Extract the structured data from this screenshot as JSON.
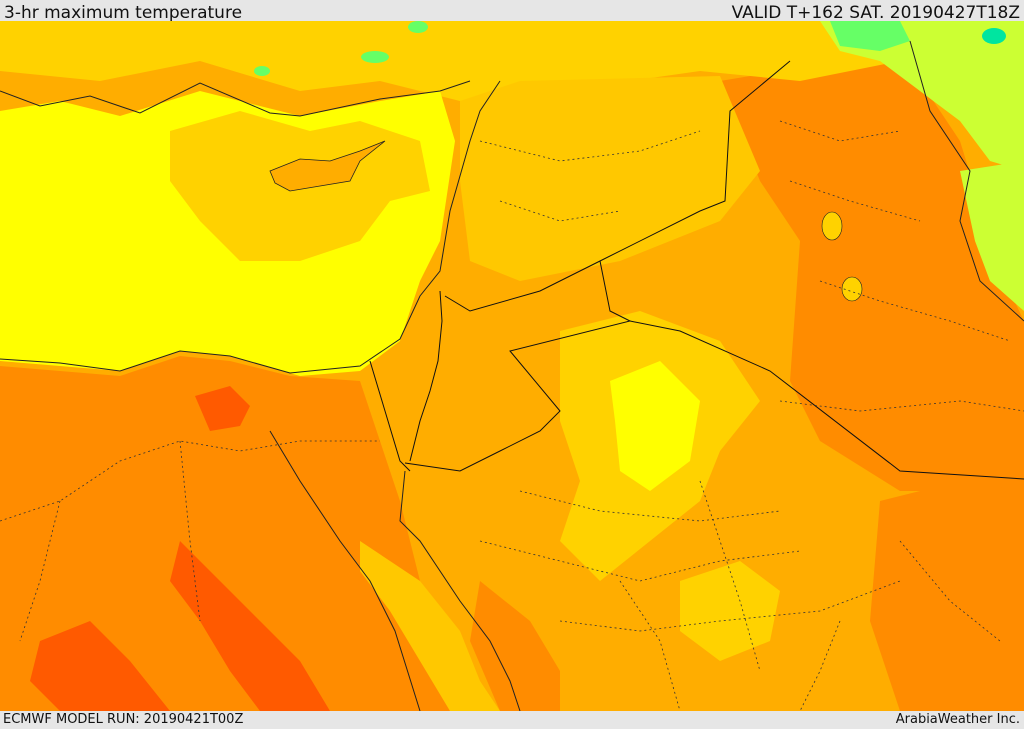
{
  "header": {
    "title": "3-hr maximum temperature",
    "valid": "VALID T+162 SAT. 20190427T18Z"
  },
  "footer": {
    "model_run": "ECMWF MODEL RUN: 20190421T00Z",
    "credit": "ArabiaWeather Inc."
  },
  "legend_colors": {
    "very_hot": "#ff5a00",
    "hot": "#ff8c00",
    "warm": "#ffad00",
    "mild_warm": "#ffd200",
    "mild": "#ffff00",
    "cool": "#ccff33",
    "cooler": "#66ff66",
    "coolest": "#00e5a0"
  }
}
